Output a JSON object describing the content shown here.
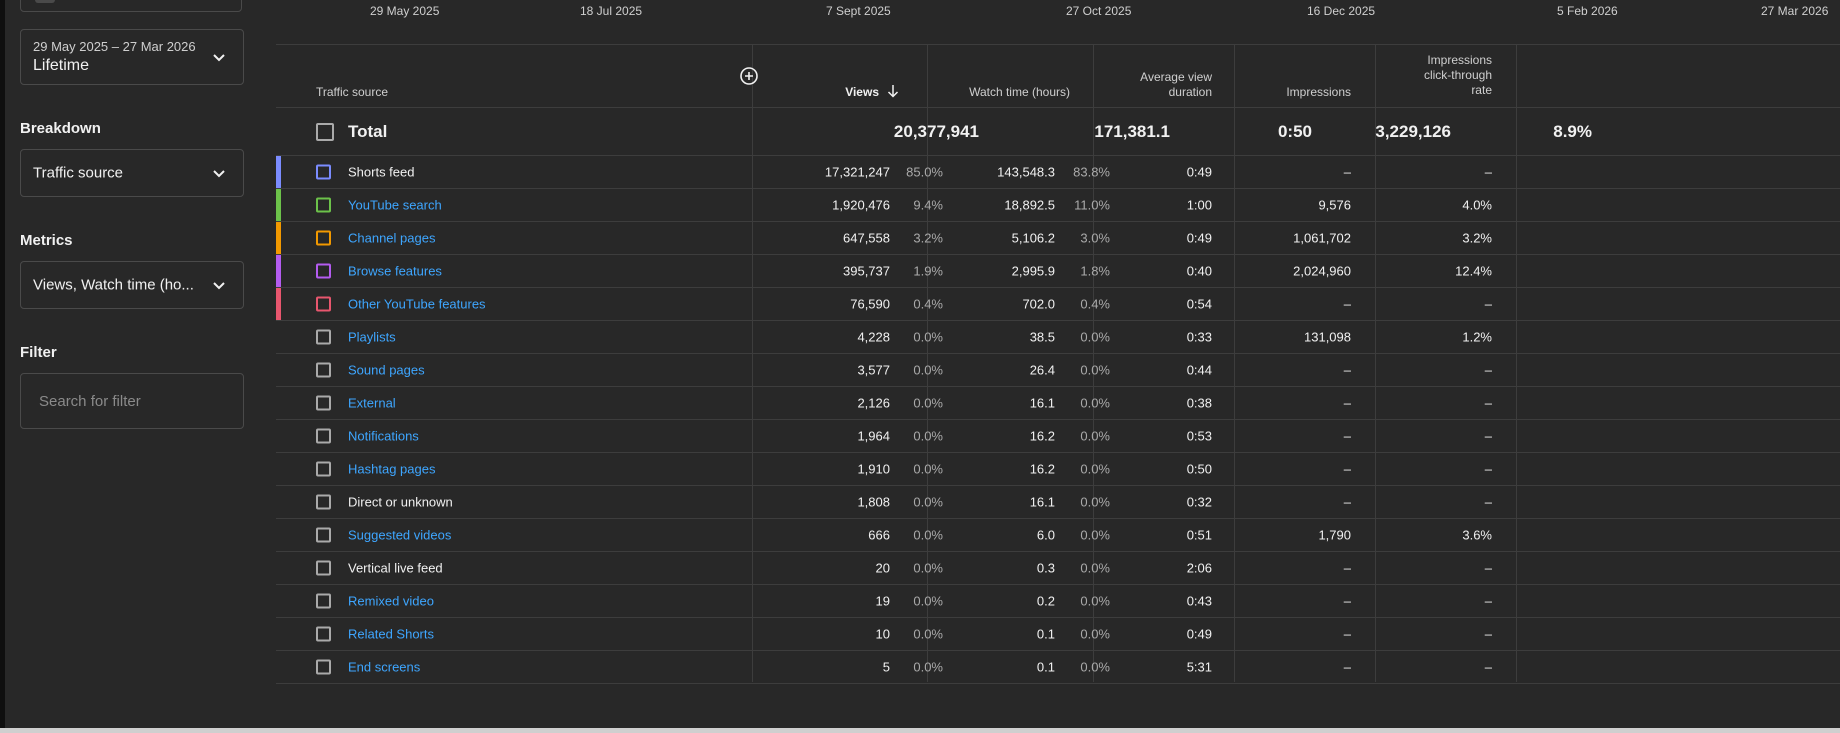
{
  "sidebar": {
    "date_range": "29 May 2025 – 27 Mar 2026",
    "period": "Lifetime",
    "breakdown_label": "Breakdown",
    "breakdown_value": "Traffic source",
    "metrics_label": "Metrics",
    "metrics_value": "Views, Watch time (ho...",
    "filter_label": "Filter",
    "filter_placeholder": "Search for filter"
  },
  "timeline": [
    "29 May 2025",
    "18 Jul 2025",
    "7 Sept 2025",
    "27 Oct 2025",
    "16 Dec 2025",
    "5 Feb 2026",
    "27 Mar 2026"
  ],
  "headers": {
    "traffic_source": "Traffic source",
    "views": "Views",
    "watch_time": "Watch time (hours)",
    "avg_view_duration_1": "Average view",
    "avg_view_duration_2": "duration",
    "impressions": "Impressions",
    "ctr_1": "Impressions",
    "ctr_2": "click-through",
    "ctr_3": "rate"
  },
  "total": {
    "label": "Total",
    "views": "20,377,941",
    "watch": "171,381.1",
    "avg": "0:50",
    "impressions": "3,229,126",
    "ctr": "8.9%"
  },
  "rows": [
    {
      "name": "Shorts feed",
      "link": false,
      "color": "#7b8cff",
      "cb": "#7b8cff",
      "views": "17,321,247",
      "views_pct": "85.0%",
      "watch": "143,548.3",
      "watch_pct": "83.8%",
      "avg": "0:49",
      "impressions": "–",
      "ctr": "–"
    },
    {
      "name": "YouTube search",
      "link": true,
      "color": "#6cc24a",
      "cb": "#6cc24a",
      "views": "1,920,476",
      "views_pct": "9.4%",
      "watch": "18,892.5",
      "watch_pct": "11.0%",
      "avg": "1:00",
      "impressions": "9,576",
      "ctr": "4.0%"
    },
    {
      "name": "Channel pages",
      "link": true,
      "color": "#f29900",
      "cb": "#f29900",
      "views": "647,558",
      "views_pct": "3.2%",
      "watch": "5,106.2",
      "watch_pct": "3.0%",
      "avg": "0:49",
      "impressions": "1,061,702",
      "ctr": "3.2%"
    },
    {
      "name": "Browse features",
      "link": true,
      "color": "#b45cf0",
      "cb": "#b45cf0",
      "views": "395,737",
      "views_pct": "1.9%",
      "watch": "2,995.9",
      "watch_pct": "1.8%",
      "avg": "0:40",
      "impressions": "2,024,960",
      "ctr": "12.4%"
    },
    {
      "name": "Other YouTube features",
      "link": true,
      "color": "#e8566e",
      "cb": "#e8566e",
      "views": "76,590",
      "views_pct": "0.4%",
      "watch": "702.0",
      "watch_pct": "0.4%",
      "avg": "0:54",
      "impressions": "–",
      "ctr": "–"
    },
    {
      "name": "Playlists",
      "link": true,
      "color": "",
      "cb": "#aaaaaa",
      "views": "4,228",
      "views_pct": "0.0%",
      "watch": "38.5",
      "watch_pct": "0.0%",
      "avg": "0:33",
      "impressions": "131,098",
      "ctr": "1.2%"
    },
    {
      "name": "Sound pages",
      "link": true,
      "color": "",
      "cb": "#aaaaaa",
      "views": "3,577",
      "views_pct": "0.0%",
      "watch": "26.4",
      "watch_pct": "0.0%",
      "avg": "0:44",
      "impressions": "–",
      "ctr": "–"
    },
    {
      "name": "External",
      "link": true,
      "color": "",
      "cb": "#aaaaaa",
      "views": "2,126",
      "views_pct": "0.0%",
      "watch": "16.1",
      "watch_pct": "0.0%",
      "avg": "0:38",
      "impressions": "–",
      "ctr": "–"
    },
    {
      "name": "Notifications",
      "link": true,
      "color": "",
      "cb": "#aaaaaa",
      "views": "1,964",
      "views_pct": "0.0%",
      "watch": "16.2",
      "watch_pct": "0.0%",
      "avg": "0:53",
      "impressions": "–",
      "ctr": "–"
    },
    {
      "name": "Hashtag pages",
      "link": true,
      "color": "",
      "cb": "#aaaaaa",
      "views": "1,910",
      "views_pct": "0.0%",
      "watch": "16.2",
      "watch_pct": "0.0%",
      "avg": "0:50",
      "impressions": "–",
      "ctr": "–"
    },
    {
      "name": "Direct or unknown",
      "link": false,
      "color": "",
      "cb": "#aaaaaa",
      "views": "1,808",
      "views_pct": "0.0%",
      "watch": "16.1",
      "watch_pct": "0.0%",
      "avg": "0:32",
      "impressions": "–",
      "ctr": "–"
    },
    {
      "name": "Suggested videos",
      "link": true,
      "color": "",
      "cb": "#aaaaaa",
      "views": "666",
      "views_pct": "0.0%",
      "watch": "6.0",
      "watch_pct": "0.0%",
      "avg": "0:51",
      "impressions": "1,790",
      "ctr": "3.6%"
    },
    {
      "name": "Vertical live feed",
      "link": false,
      "color": "",
      "cb": "#aaaaaa",
      "views": "20",
      "views_pct": "0.0%",
      "watch": "0.3",
      "watch_pct": "0.0%",
      "avg": "2:06",
      "impressions": "–",
      "ctr": "–"
    },
    {
      "name": "Remixed video",
      "link": true,
      "color": "",
      "cb": "#aaaaaa",
      "views": "19",
      "views_pct": "0.0%",
      "watch": "0.2",
      "watch_pct": "0.0%",
      "avg": "0:43",
      "impressions": "–",
      "ctr": "–"
    },
    {
      "name": "Related Shorts",
      "link": true,
      "color": "",
      "cb": "#aaaaaa",
      "views": "10",
      "views_pct": "0.0%",
      "watch": "0.1",
      "watch_pct": "0.0%",
      "avg": "0:49",
      "impressions": "–",
      "ctr": "–"
    },
    {
      "name": "End screens",
      "link": true,
      "color": "",
      "cb": "#aaaaaa",
      "views": "5",
      "views_pct": "0.0%",
      "watch": "0.1",
      "watch_pct": "0.0%",
      "avg": "5:31",
      "impressions": "–",
      "ctr": "–"
    }
  ]
}
